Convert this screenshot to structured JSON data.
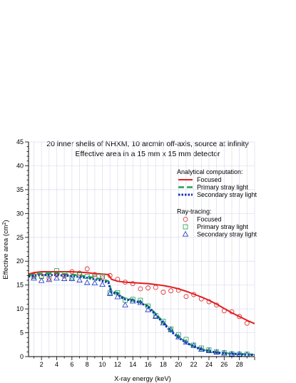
{
  "chart_data": {
    "type": "line",
    "title": "20 inner shells of NHXM, 10 arcmin off-axis, source at infinity",
    "subtitle": "Effective area in a 15 mm x 15 mm detector",
    "xlabel": "X-ray energy (keV)",
    "ylabel": "Effective area (cm",
    "ylabel_sup": "2",
    "ylabel_end": ")",
    "xlim": [
      0.3,
      30
    ],
    "ylim": [
      0,
      45
    ],
    "x_ticks": [
      2,
      4,
      6,
      8,
      10,
      12,
      14,
      16,
      18,
      20,
      22,
      24,
      26,
      28
    ],
    "y_ticks": [
      0,
      5,
      10,
      15,
      20,
      25,
      30,
      35,
      40,
      45
    ],
    "grid": true,
    "legend_placement": "right",
    "legend_groups": [
      {
        "title": "Analytical computation:",
        "entries": [
          "Focused",
          "Primary stray light",
          "Secondary stray light"
        ]
      },
      {
        "title": "Ray-tracing:",
        "entries": [
          "Focused",
          "Primary stray light",
          "Secondary stray light"
        ]
      }
    ],
    "colors": {
      "focused": "#e02020",
      "primary": "#22a050",
      "secondary": "#1030c0"
    },
    "series": [
      {
        "name": "Focused",
        "group": "Analytical computation",
        "style": "solid-line",
        "x": [
          0.3,
          1,
          2,
          3,
          4,
          5,
          6,
          7,
          8,
          9,
          10,
          10.8,
          11.2,
          12,
          13,
          14,
          15,
          16,
          17,
          18,
          19,
          20,
          21,
          22,
          23,
          24,
          25,
          26,
          27,
          28,
          29,
          30
        ],
        "y": [
          17.3,
          17.6,
          17.8,
          17.8,
          17.8,
          17.8,
          17.8,
          17.7,
          17.6,
          17.4,
          17.3,
          17.2,
          16.2,
          15.8,
          15.6,
          15.5,
          15.4,
          15.3,
          15.1,
          14.9,
          14.6,
          14.2,
          13.7,
          13.1,
          12.5,
          11.8,
          11.0,
          10.1,
          9.2,
          8.4,
          7.6,
          6.9
        ]
      },
      {
        "name": "Primary stray light",
        "group": "Analytical computation",
        "style": "dashed-line",
        "x": [
          0.3,
          1,
          2,
          3,
          4,
          5,
          6,
          7,
          8,
          9,
          10,
          10.8,
          11.2,
          12,
          12.5,
          13,
          14,
          15,
          16,
          17,
          18,
          19,
          20,
          21,
          22,
          23,
          24,
          25,
          26,
          27,
          28,
          29,
          30
        ],
        "y": [
          17.0,
          17.3,
          17.4,
          17.4,
          17.4,
          17.3,
          17.2,
          17.0,
          16.8,
          16.5,
          16.2,
          15.8,
          13.6,
          13.4,
          12.6,
          12.2,
          11.9,
          11.5,
          10.6,
          9.0,
          7.2,
          5.5,
          4.2,
          3.0,
          2.2,
          1.6,
          1.2,
          0.9,
          0.75,
          0.65,
          0.55,
          0.5,
          0.4
        ]
      },
      {
        "name": "Secondary stray light",
        "group": "Analytical computation",
        "style": "dotted-line",
        "x": [
          0.3,
          1,
          2,
          3,
          4,
          5,
          6,
          7,
          8,
          9,
          10,
          10.8,
          11.2,
          12,
          12.5,
          13,
          14,
          15,
          16,
          17,
          18,
          19,
          20,
          21,
          22,
          23,
          24,
          25,
          26,
          27,
          28,
          29,
          30
        ],
        "y": [
          16.8,
          17.0,
          17.1,
          17.1,
          17.1,
          17.0,
          16.9,
          16.7,
          16.5,
          16.2,
          15.9,
          15.5,
          13.4,
          13.2,
          12.4,
          12.0,
          11.7,
          11.3,
          10.4,
          8.8,
          7.0,
          5.3,
          4.0,
          2.9,
          2.1,
          1.5,
          1.1,
          0.85,
          0.7,
          0.6,
          0.5,
          0.45,
          0.35
        ]
      },
      {
        "name": "Focused",
        "group": "Ray-tracing",
        "style": "circle",
        "x": [
          1,
          2,
          3,
          4,
          5,
          6,
          7,
          8,
          9,
          10,
          11,
          12,
          13,
          14,
          15,
          16,
          17,
          18,
          19,
          20,
          21,
          22,
          23,
          24,
          25,
          26,
          27,
          28,
          29
        ],
        "y": [
          17.0,
          16.8,
          16.4,
          17.2,
          16.9,
          17.8,
          17.5,
          18.4,
          17.2,
          16.5,
          17.0,
          16.2,
          15.6,
          15.3,
          14.2,
          14.4,
          14.5,
          13.5,
          13.8,
          13.9,
          12.6,
          13.0,
          12.1,
          11.5,
          10.8,
          9.6,
          9.4,
          8.4,
          7.0
        ]
      },
      {
        "name": "Primary stray light",
        "group": "Ray-tracing",
        "style": "square",
        "x": [
          1,
          2,
          3,
          4,
          5,
          6,
          7,
          8,
          9,
          10,
          11,
          12,
          13,
          14,
          15,
          16,
          17,
          18,
          19,
          20,
          21,
          22,
          23,
          24,
          25,
          26,
          27,
          28,
          29
        ],
        "y": [
          16.8,
          16.8,
          17.2,
          18.0,
          17.3,
          16.6,
          17.1,
          16.8,
          16.6,
          16.9,
          13.4,
          13.4,
          11.8,
          12.0,
          11.8,
          10.6,
          8.6,
          7.4,
          5.8,
          4.6,
          3.6,
          2.4,
          1.8,
          1.4,
          1.0,
          0.8,
          0.6,
          0.5,
          0.5
        ]
      },
      {
        "name": "Secondary stray light",
        "group": "Ray-tracing",
        "style": "triangle",
        "x": [
          1,
          2,
          3,
          4,
          5,
          6,
          7,
          8,
          9,
          10,
          11,
          12,
          13,
          14,
          15,
          16,
          17,
          18,
          19,
          20,
          21,
          22,
          23,
          24,
          25,
          26,
          27,
          28,
          29
        ],
        "y": [
          16.4,
          15.9,
          16.1,
          16.4,
          16.3,
          16.3,
          16.0,
          15.5,
          15.4,
          15.1,
          13.2,
          12.5,
          10.8,
          11.6,
          11.3,
          9.8,
          8.4,
          7.0,
          5.6,
          4.1,
          3.0,
          2.3,
          1.5,
          1.2,
          0.9,
          0.7,
          0.5,
          0.5,
          0.4
        ]
      }
    ]
  }
}
